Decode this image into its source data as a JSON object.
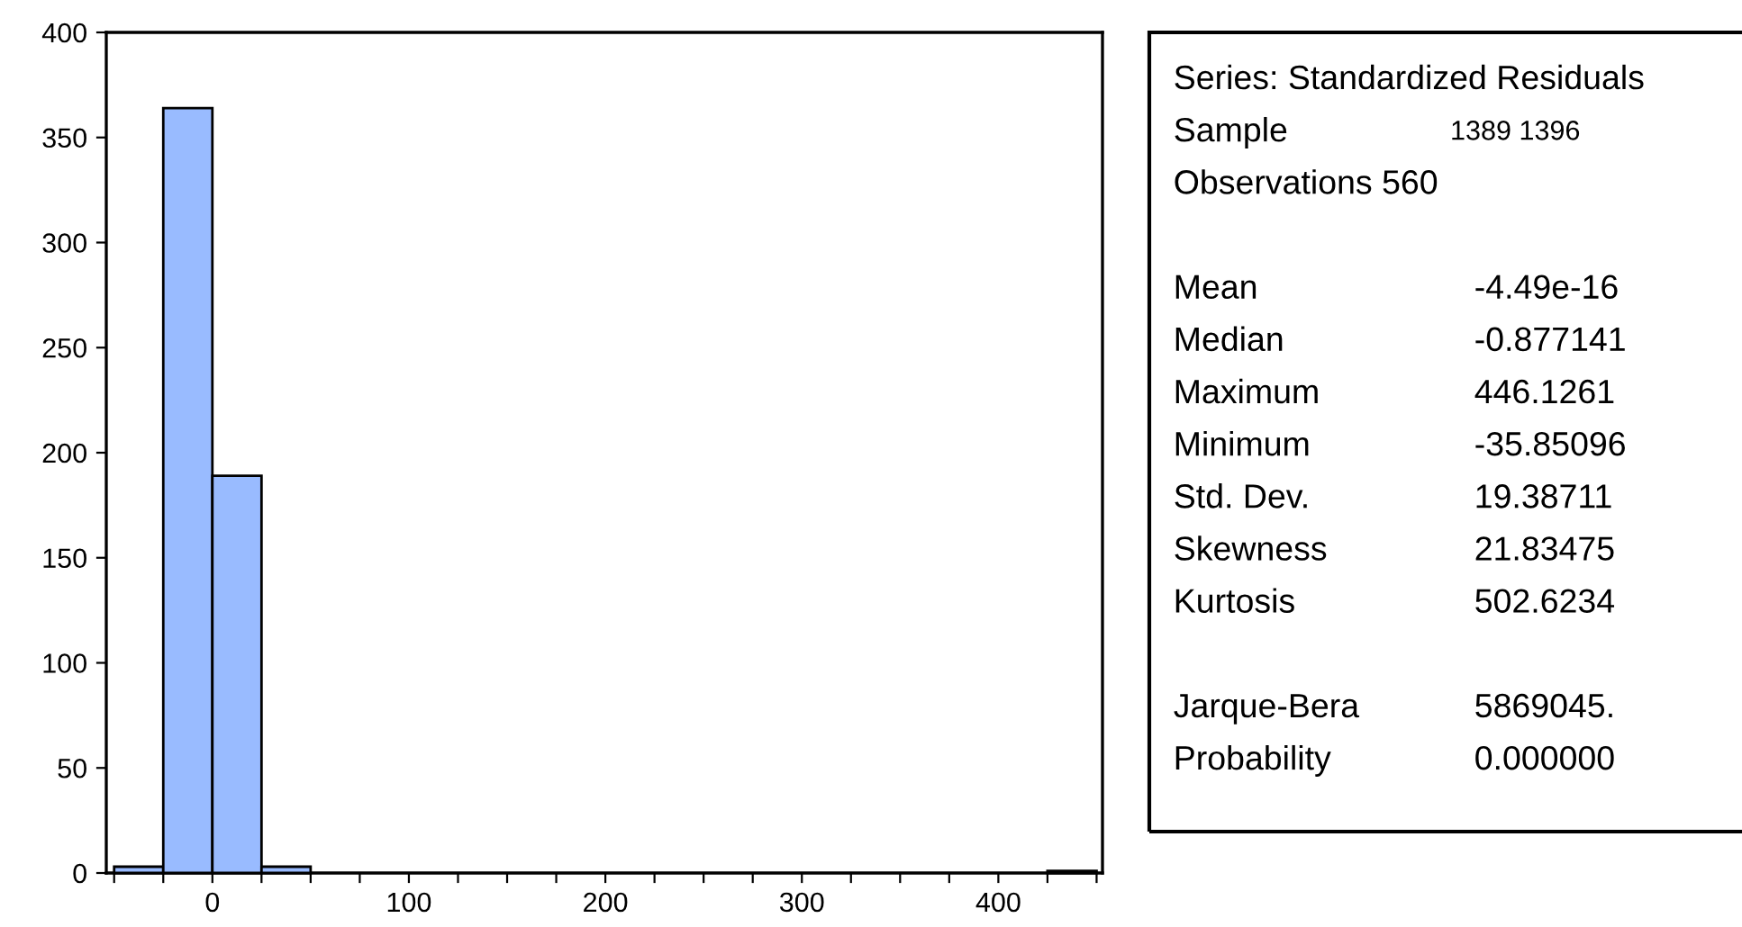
{
  "chart_data": [
    {
      "type": "histogram",
      "bins": [
        -50,
        -25,
        0,
        25,
        50,
        75,
        100,
        125,
        150,
        175,
        200,
        225,
        250,
        275,
        300,
        325,
        350,
        375,
        400,
        425,
        450
      ],
      "values": [
        3,
        364,
        189,
        3,
        0,
        0,
        0,
        0,
        0,
        0,
        0,
        0,
        0,
        0,
        0,
        0,
        0,
        0,
        0,
        1
      ],
      "color": "#99bbff",
      "xlim": [
        -54,
        453
      ],
      "ylim": [
        0,
        400
      ],
      "xticks": [
        {
          "value": -50,
          "label": null
        },
        {
          "value": -25,
          "label": null
        },
        0,
        {
          "value": 25,
          "label": null
        },
        {
          "value": 50,
          "label": null
        },
        {
          "value": 75,
          "label": null
        },
        100,
        {
          "value": 125,
          "label": null
        },
        {
          "value": 150,
          "label": null
        },
        {
          "value": 175,
          "label": null
        },
        200,
        {
          "value": 225,
          "label": null
        },
        {
          "value": 250,
          "label": null
        },
        {
          "value": 275,
          "label": null
        },
        300,
        {
          "value": 325,
          "label": null
        },
        {
          "value": 350,
          "label": null
        },
        {
          "value": 375,
          "label": null
        },
        400,
        {
          "value": 425,
          "label": null
        },
        {
          "value": 450,
          "label": null
        }
      ],
      "yticks": [
        0,
        50,
        100,
        150,
        200,
        250,
        300,
        350,
        400
      ],
      "grid": false
    },
    {
      "type": "other",
      "title": "Series: Standardized Residuals",
      "annotations": [
        "Sample",
        "1389 1396",
        "Observations 560",
        "Mean",
        "-4.49e-16",
        "Median",
        "-0.877141",
        "Maximum",
        "446.1261",
        "Minimum",
        "-35.85096",
        "Std. Dev.",
        "19.38711",
        "Skewness",
        "21.83475",
        "Kurtosis",
        "502.6234",
        "Jarque-Bera",
        "5869045.",
        "Probability",
        "0.000000"
      ]
    }
  ]
}
